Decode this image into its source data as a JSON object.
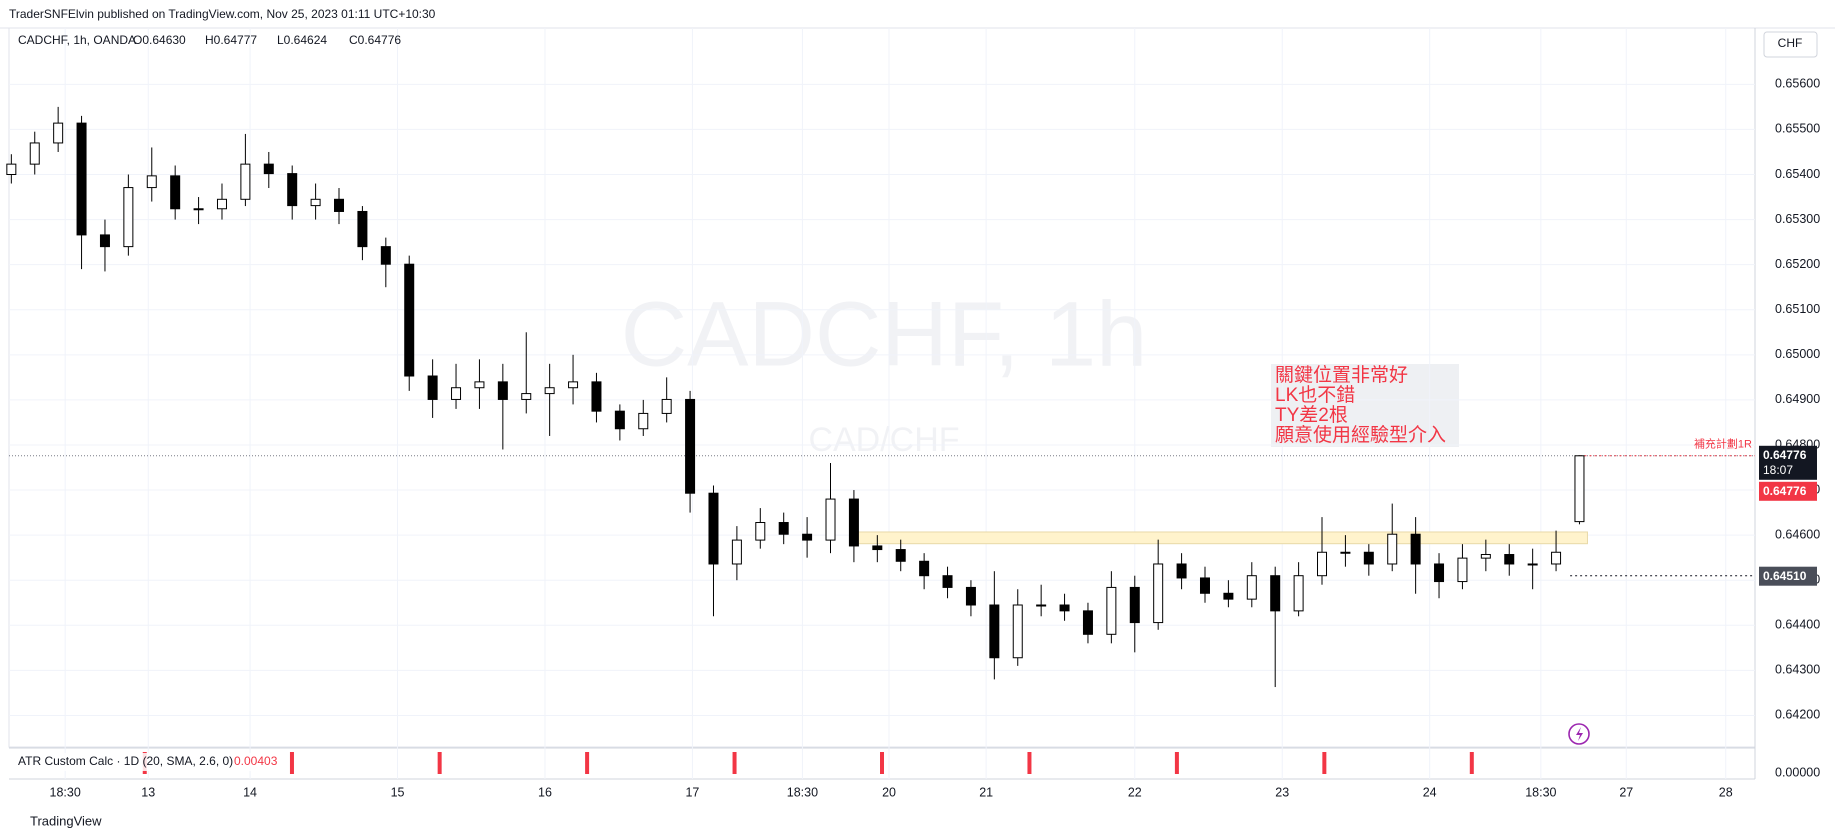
{
  "chart_data": {
    "type": "candlestick",
    "publisher": "TraderSNFElvin published on TradingView.com, Nov 25, 2023 01:11 UTC+10:30",
    "title": "CADCHF, 1h, OANDA",
    "ohlc_labels": [
      "O0.64630",
      "H0.64777",
      "L0.64624",
      "C0.64776"
    ],
    "watermark": "CADCHF, 1h",
    "watermark_sub": "CAD/CHF",
    "currency": "CHF",
    "footer": "TradingView",
    "up_color": "#ffffff",
    "down_color": "#000000",
    "open": [
      0.654,
      0.65423,
      0.6547,
      0.65514,
      0.65266,
      0.6524,
      0.65371,
      0.65397,
      0.65324,
      0.65324,
      0.65345,
      0.65423,
      0.65402,
      0.65331,
      0.65345,
      0.65318,
      0.6524,
      0.65201,
      0.64953,
      0.64901,
      0.64927,
      0.6494,
      0.64901,
      0.64914,
      0.64927,
      0.6494,
      0.64875,
      0.64836,
      0.6487,
      0.64901,
      0.64693,
      0.64536,
      0.64589,
      0.64628,
      0.64602,
      0.64589,
      0.6468,
      0.64576,
      0.64568,
      0.64542,
      0.6451,
      0.64484,
      0.64445,
      0.64328,
      0.64445,
      0.64445,
      0.64432,
      0.6438,
      0.64484,
      0.64406,
      0.64536,
      0.64505,
      0.64471,
      0.64458,
      0.6451,
      0.64432,
      0.6451,
      0.64562,
      0.64562,
      0.64536,
      0.64602,
      0.64536,
      0.64497,
      0.64549,
      0.64557,
      0.64536,
      0.64536,
      0.6463
    ],
    "high": [
      0.65445,
      0.65495,
      0.6555,
      0.6553,
      0.653,
      0.654,
      0.6546,
      0.6542,
      0.6535,
      0.6538,
      0.6549,
      0.6545,
      0.6542,
      0.6538,
      0.6537,
      0.6533,
      0.6526,
      0.6522,
      0.6499,
      0.6498,
      0.6499,
      0.6498,
      0.6505,
      0.6498,
      0.65,
      0.6496,
      0.6489,
      0.649,
      0.6495,
      0.6492,
      0.6471,
      0.6462,
      0.6466,
      0.6465,
      0.6464,
      0.6476,
      0.647,
      0.646,
      0.6459,
      0.6456,
      0.6453,
      0.645,
      0.6452,
      0.6448,
      0.6449,
      0.6447,
      0.6445,
      0.6452,
      0.6451,
      0.6459,
      0.6456,
      0.6453,
      0.645,
      0.6454,
      0.6453,
      0.6454,
      0.6464,
      0.646,
      0.6458,
      0.6467,
      0.6464,
      0.6456,
      0.6458,
      0.6459,
      0.6458,
      0.6457,
      0.6461,
      0.64777
    ],
    "low": [
      0.6538,
      0.654,
      0.6545,
      0.6519,
      0.65185,
      0.6522,
      0.6534,
      0.653,
      0.6529,
      0.653,
      0.6533,
      0.6537,
      0.653,
      0.653,
      0.6529,
      0.6521,
      0.6515,
      0.6492,
      0.6486,
      0.6488,
      0.6488,
      0.6479,
      0.6487,
      0.6482,
      0.6489,
      0.6485,
      0.6481,
      0.6482,
      0.6485,
      0.6465,
      0.6442,
      0.645,
      0.6457,
      0.6458,
      0.6455,
      0.6456,
      0.6454,
      0.6454,
      0.6452,
      0.6448,
      0.6446,
      0.6442,
      0.6428,
      0.6431,
      0.6442,
      0.6441,
      0.6436,
      0.6436,
      0.6434,
      0.6439,
      0.6448,
      0.6445,
      0.6444,
      0.6444,
      0.64263,
      0.6442,
      0.6449,
      0.6453,
      0.6451,
      0.6452,
      0.6447,
      0.6446,
      0.6448,
      0.6452,
      0.6451,
      0.6448,
      0.6452,
      0.64624
    ],
    "close": [
      0.65423,
      0.6547,
      0.65514,
      0.65266,
      0.6524,
      0.65371,
      0.65397,
      0.65324,
      0.65324,
      0.65345,
      0.65423,
      0.65402,
      0.65331,
      0.65345,
      0.65318,
      0.6524,
      0.65201,
      0.64953,
      0.64901,
      0.64927,
      0.6494,
      0.64901,
      0.64914,
      0.64927,
      0.6494,
      0.64875,
      0.64836,
      0.6487,
      0.64901,
      0.64693,
      0.64536,
      0.64589,
      0.64628,
      0.64602,
      0.64589,
      0.6468,
      0.64576,
      0.64568,
      0.64542,
      0.6451,
      0.64484,
      0.64445,
      0.64328,
      0.64445,
      0.64445,
      0.64432,
      0.6438,
      0.64484,
      0.64406,
      0.64536,
      0.64505,
      0.64471,
      0.64458,
      0.6451,
      0.64432,
      0.6451,
      0.64562,
      0.64562,
      0.64536,
      0.64602,
      0.64536,
      0.64497,
      0.64549,
      0.64557,
      0.64536,
      0.64536,
      0.64562,
      0.64776
    ],
    "xlim": [
      -0.1,
      74.5
    ],
    "xticks": [
      {
        "value": 2.3,
        "label": "18:30"
      },
      {
        "value": 5.85,
        "label": "13"
      },
      {
        "value": 10.2,
        "label": "14"
      },
      {
        "value": 16.5,
        "label": "15"
      },
      {
        "value": 22.8,
        "label": "16"
      },
      {
        "value": 29.1,
        "label": "17"
      },
      {
        "value": 33.8,
        "label": "18:30"
      },
      {
        "value": 37.5,
        "label": "20"
      },
      {
        "value": 41.65,
        "label": "21"
      },
      {
        "value": 48,
        "label": "22"
      },
      {
        "value": 54.3,
        "label": "23"
      },
      {
        "value": 60.6,
        "label": "24"
      },
      {
        "value": 65.35,
        "label": "18:30"
      },
      {
        "value": 69,
        "label": "27"
      },
      {
        "value": 73.25,
        "label": "28"
      }
    ],
    "ylim": [
      0.6413,
      0.65725
    ],
    "yticks": [
      {
        "value": 0.656,
        "label": "0.65600"
      },
      {
        "value": 0.655,
        "label": "0.65500"
      },
      {
        "value": 0.654,
        "label": "0.65400"
      },
      {
        "value": 0.653,
        "label": "0.65300"
      },
      {
        "value": 0.652,
        "label": "0.65200"
      },
      {
        "value": 0.651,
        "label": "0.65100"
      },
      {
        "value": 0.65,
        "label": "0.65000"
      },
      {
        "value": 0.649,
        "label": "0.64900"
      },
      {
        "value": 0.648,
        "label": "0.64800"
      },
      {
        "value": 0.647,
        "label": "0.64700"
      },
      {
        "value": 0.646,
        "label": "0.64600"
      },
      {
        "value": 0.645,
        "label": "0.64500"
      },
      {
        "value": 0.644,
        "label": "0.64400"
      },
      {
        "value": 0.643,
        "label": "0.64300"
      },
      {
        "value": 0.642,
        "label": "0.64200"
      }
    ],
    "grid": true,
    "last_price": 0.64776,
    "countdown": "18:07",
    "level": {
      "value": 0.6451,
      "label": "0.64510"
    },
    "zone": [
      0.64581,
      0.64607
    ],
    "zone_color": "#fff3cc",
    "plan_label": "補充計劃1R",
    "note_lines": [
      "關鍵位置非常好",
      "LK也不錯",
      "TY差2根",
      "願意使用經驗型介入"
    ],
    "atr": {
      "label": "ATR Custom Calc · 1D (20, SMA, 2.6, 0)",
      "value": "0.00403",
      "axis_label": "0.00000",
      "color": "#f23645",
      "markers_x": [
        5.7,
        11.99,
        18.3,
        24.6,
        30.9,
        37.2,
        43.5,
        49.8,
        56.1,
        62.4
      ]
    }
  }
}
